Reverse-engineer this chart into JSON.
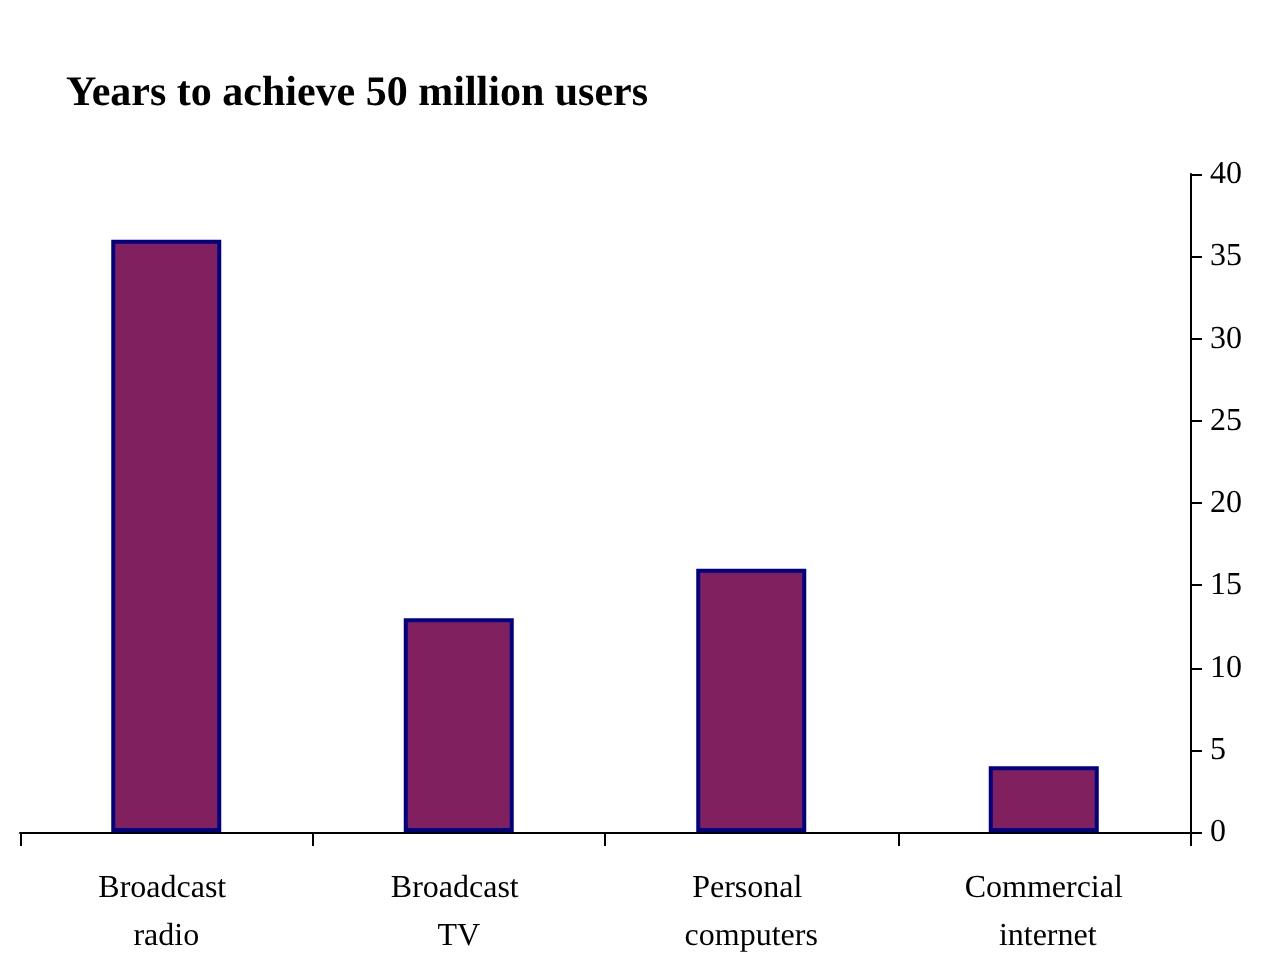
{
  "chart_data": {
    "type": "bar",
    "title": "Years to achieve 50 million users",
    "categories": [
      "Broadcast radio",
      "Broadcast TV",
      "Personal computers",
      "Commercial internet"
    ],
    "values": [
      36,
      13,
      16,
      4
    ],
    "color": "#80205f",
    "ylim": [
      0,
      40
    ],
    "yticks": [
      0,
      5,
      10,
      15,
      20,
      25,
      30,
      35,
      40
    ]
  }
}
